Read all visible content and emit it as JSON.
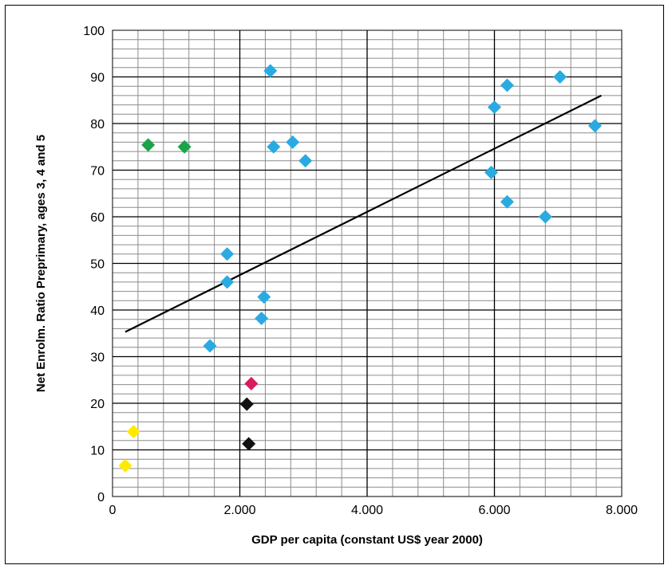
{
  "chart_data": {
    "type": "scatter",
    "title": "",
    "xlabel": "GDP per capita (constant US$ year 2000)",
    "ylabel": "Net Enrolm. Ratio Preprimary, ages 3, 4 and 5",
    "xlim": [
      0,
      8000
    ],
    "ylim": [
      0,
      100
    ],
    "x_ticks": [
      {
        "value": 0,
        "label": "0"
      },
      {
        "value": 2000,
        "label": "2.000"
      },
      {
        "value": 4000,
        "label": "4.000"
      },
      {
        "value": 6000,
        "label": "6.000"
      },
      {
        "value": 8000,
        "label": "8.000"
      }
    ],
    "y_ticks": [
      {
        "value": 0,
        "label": "0"
      },
      {
        "value": 10,
        "label": "10"
      },
      {
        "value": 20,
        "label": "20"
      },
      {
        "value": 30,
        "label": "30"
      },
      {
        "value": 40,
        "label": "40"
      },
      {
        "value": 50,
        "label": "50"
      },
      {
        "value": 60,
        "label": "60"
      },
      {
        "value": 70,
        "label": "70"
      },
      {
        "value": 80,
        "label": "80"
      },
      {
        "value": 90,
        "label": "90"
      },
      {
        "value": 100,
        "label": "100"
      }
    ],
    "grid": true,
    "series": [
      {
        "color": "#29abe2",
        "points": [
          [
            2480,
            91.3
          ],
          [
            6200,
            88.2
          ],
          [
            7030,
            90.0
          ],
          [
            6000,
            83.5
          ],
          [
            7580,
            79.5
          ],
          [
            2530,
            75.0
          ],
          [
            2830,
            76.0
          ],
          [
            3030,
            72.0
          ],
          [
            5950,
            69.5
          ],
          [
            6200,
            63.2
          ],
          [
            6800,
            60.0
          ],
          [
            1800,
            52.0
          ],
          [
            1800,
            46.0
          ],
          [
            2380,
            42.8
          ],
          [
            2340,
            38.2
          ],
          [
            1530,
            32.3
          ]
        ]
      },
      {
        "color": "#1aa34a",
        "points": [
          [
            560,
            75.4
          ],
          [
            1130,
            75.0
          ]
        ]
      },
      {
        "color": "#d81b60",
        "points": [
          [
            2180,
            24.2
          ]
        ]
      },
      {
        "color": "#111111",
        "points": [
          [
            2110,
            19.8
          ],
          [
            2140,
            11.3
          ]
        ]
      },
      {
        "color": "#ffea00",
        "points": [
          [
            330,
            13.9
          ],
          [
            200,
            6.6
          ]
        ]
      }
    ],
    "trendline": {
      "x": [
        200,
        7680
      ],
      "y": [
        35.3,
        86.0
      ],
      "color": "#000000"
    }
  }
}
